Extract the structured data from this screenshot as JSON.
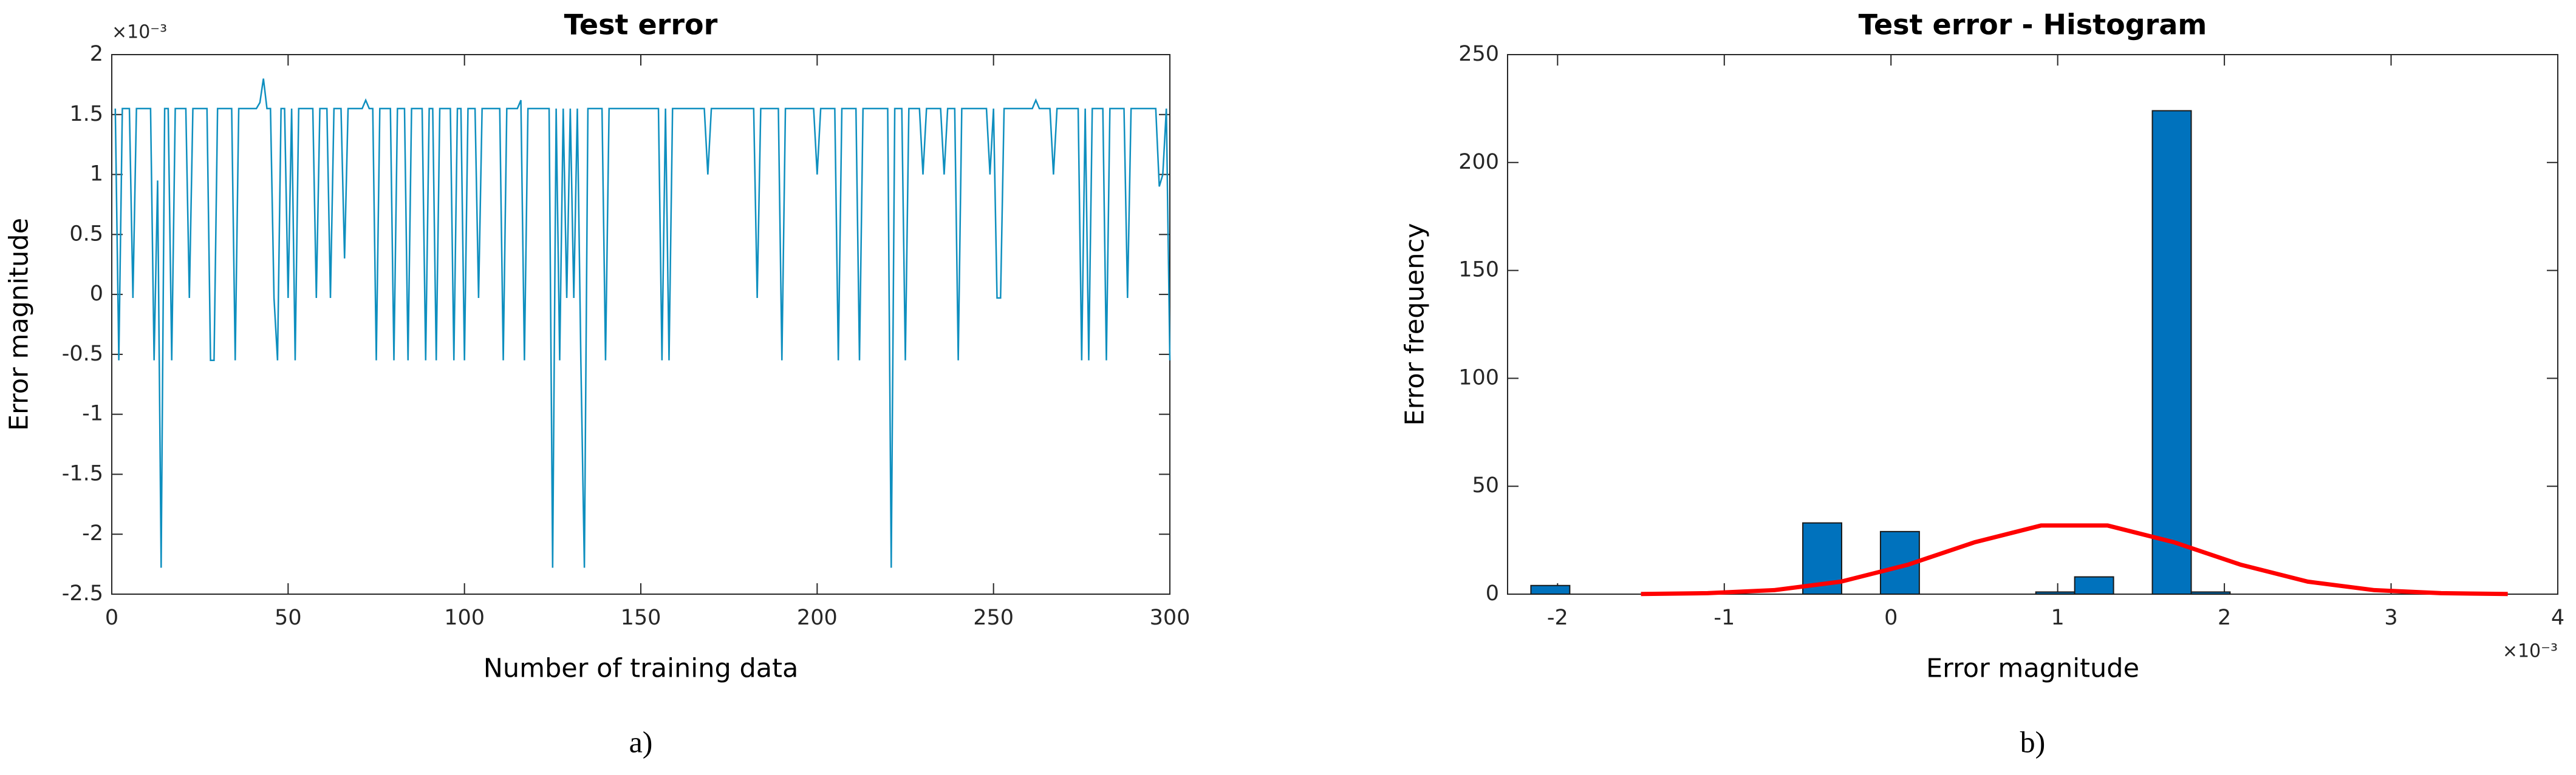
{
  "chart_data": [
    {
      "type": "line",
      "title": "Test error",
      "xlabel": "Number of training data",
      "ylabel": "Error magnitude",
      "exponent_label": "×10⁻³",
      "caption": "a)",
      "xlim": [
        0,
        300
      ],
      "xticks": [
        0,
        50,
        100,
        150,
        200,
        250,
        300
      ],
      "ylim": [
        -2.5,
        2
      ],
      "yticks": [
        -2.5,
        -2,
        -1.5,
        -1,
        -0.5,
        0,
        0.5,
        1,
        1.5,
        2
      ],
      "color": "#0e8fbf",
      "x": [
        1,
        2,
        3,
        4,
        5,
        6,
        7,
        8,
        9,
        10,
        11,
        12,
        13,
        14,
        15,
        16,
        17,
        18,
        19,
        20,
        21,
        22,
        23,
        24,
        25,
        26,
        27,
        28,
        29,
        30,
        31,
        32,
        33,
        34,
        35,
        36,
        37,
        38,
        39,
        40,
        41,
        42,
        43,
        44,
        45,
        46,
        47,
        48,
        49,
        50,
        51,
        52,
        53,
        54,
        55,
        56,
        57,
        58,
        59,
        60,
        61,
        62,
        63,
        64,
        65,
        66,
        67,
        68,
        69,
        70,
        71,
        72,
        73,
        74,
        75,
        76,
        77,
        78,
        79,
        80,
        81,
        82,
        83,
        84,
        85,
        86,
        87,
        88,
        89,
        90,
        91,
        92,
        93,
        94,
        95,
        96,
        97,
        98,
        99,
        100,
        101,
        102,
        103,
        104,
        105,
        106,
        107,
        108,
        109,
        110,
        111,
        112,
        113,
        114,
        115,
        116,
        117,
        118,
        119,
        120,
        121,
        122,
        123,
        124,
        125,
        126,
        127,
        128,
        129,
        130,
        131,
        132,
        133,
        134,
        135,
        136,
        137,
        138,
        139,
        140,
        141,
        142,
        143,
        144,
        145,
        146,
        147,
        148,
        149,
        150,
        151,
        152,
        153,
        154,
        155,
        156,
        157,
        158,
        159,
        160,
        161,
        162,
        163,
        164,
        165,
        166,
        167,
        168,
        169,
        170,
        171,
        172,
        173,
        174,
        175,
        176,
        177,
        178,
        179,
        180,
        181,
        182,
        183,
        184,
        185,
        186,
        187,
        188,
        189,
        190,
        191,
        192,
        193,
        194,
        195,
        196,
        197,
        198,
        199,
        200,
        201,
        202,
        203,
        204,
        205,
        206,
        207,
        208,
        209,
        210,
        211,
        212,
        213,
        214,
        215,
        216,
        217,
        218,
        219,
        220,
        221,
        222,
        223,
        224,
        225,
        226,
        227,
        228,
        229,
        230,
        231,
        232,
        233,
        234,
        235,
        236,
        237,
        238,
        239,
        240,
        241,
        242,
        243,
        244,
        245,
        246,
        247,
        248,
        249,
        250,
        251,
        252,
        253,
        254,
        255,
        256,
        257,
        258,
        259,
        260,
        261,
        262,
        263,
        264,
        265,
        266,
        267,
        268,
        269,
        270,
        271,
        272,
        273,
        274,
        275,
        276,
        277,
        278,
        279,
        280,
        281,
        282,
        283,
        284,
        285,
        286,
        287,
        288,
        289,
        290,
        291,
        292,
        293,
        294,
        295,
        296,
        297,
        298,
        299,
        300
      ],
      "values": [
        1.55,
        -0.55,
        1.55,
        1.55,
        1.55,
        -0.03,
        1.55,
        1.55,
        1.55,
        1.55,
        1.55,
        -0.55,
        0.95,
        -2.28,
        1.55,
        1.55,
        -0.55,
        1.55,
        1.55,
        1.55,
        1.55,
        -0.03,
        1.55,
        1.55,
        1.55,
        1.55,
        1.55,
        -0.55,
        -0.55,
        1.55,
        1.55,
        1.55,
        1.55,
        1.55,
        -0.55,
        1.55,
        1.55,
        1.55,
        1.55,
        1.55,
        1.55,
        1.6,
        1.8,
        1.55,
        1.55,
        -0.03,
        -0.55,
        1.55,
        1.55,
        -0.03,
        1.55,
        -0.55,
        1.55,
        1.55,
        1.55,
        1.55,
        1.55,
        -0.03,
        1.55,
        1.55,
        1.55,
        -0.03,
        1.55,
        1.55,
        1.55,
        0.3,
        1.55,
        1.55,
        1.55,
        1.55,
        1.55,
        1.62,
        1.55,
        1.55,
        -0.55,
        1.55,
        1.55,
        1.55,
        1.55,
        -0.55,
        1.55,
        1.55,
        1.55,
        -0.55,
        1.55,
        1.55,
        1.55,
        1.55,
        -0.55,
        1.55,
        1.55,
        -0.55,
        1.55,
        1.55,
        1.55,
        1.55,
        -0.55,
        1.55,
        1.55,
        -0.55,
        1.55,
        1.55,
        1.55,
        -0.03,
        1.55,
        1.55,
        1.55,
        1.55,
        1.55,
        1.55,
        -0.55,
        1.55,
        1.55,
        1.55,
        1.55,
        1.62,
        -0.55,
        1.55,
        1.55,
        1.55,
        1.55,
        1.55,
        1.55,
        1.55,
        -2.28,
        1.55,
        -0.55,
        1.55,
        -0.03,
        1.55,
        -0.03,
        1.55,
        -0.55,
        -2.28,
        1.55,
        1.55,
        1.55,
        1.55,
        1.55,
        -0.55,
        1.55,
        1.55,
        1.55,
        1.55,
        1.55,
        1.55,
        1.55,
        1.55,
        1.55,
        1.55,
        1.55,
        1.55,
        1.55,
        1.55,
        1.55,
        -0.55,
        1.55,
        -0.55,
        1.55,
        1.55,
        1.55,
        1.55,
        1.55,
        1.55,
        1.55,
        1.55,
        1.55,
        1.55,
        1.0,
        1.55,
        1.55,
        1.55,
        1.55,
        1.55,
        1.55,
        1.55,
        1.55,
        1.55,
        1.55,
        1.55,
        1.55,
        1.55,
        -0.03,
        1.55,
        1.55,
        1.55,
        1.55,
        1.55,
        1.55,
        -0.55,
        1.55,
        1.55,
        1.55,
        1.55,
        1.55,
        1.55,
        1.55,
        1.55,
        1.55,
        1.0,
        1.55,
        1.55,
        1.55,
        1.55,
        1.55,
        -0.55,
        1.55,
        1.55,
        1.55,
        1.55,
        1.55,
        -0.55,
        1.55,
        1.55,
        1.55,
        1.55,
        1.55,
        1.55,
        1.55,
        1.55,
        -2.28,
        1.55,
        1.55,
        1.55,
        -0.55,
        1.55,
        1.55,
        1.55,
        1.55,
        1.0,
        1.55,
        1.55,
        1.55,
        1.55,
        1.55,
        1.0,
        1.55,
        1.55,
        1.55,
        -0.55,
        1.55,
        1.55,
        1.55,
        1.55,
        1.55,
        1.55,
        1.55,
        1.55,
        1.0,
        1.55,
        -0.03,
        -0.03,
        1.55,
        1.55,
        1.55,
        1.55,
        1.55,
        1.55,
        1.55,
        1.55,
        1.55,
        1.62,
        1.55,
        1.55,
        1.55,
        1.55,
        1.0,
        1.55,
        1.55,
        1.55,
        1.55,
        1.55,
        1.55,
        1.55,
        -0.55,
        1.55,
        -0.55,
        1.55,
        1.55,
        1.55,
        1.55,
        -0.55,
        1.55,
        1.55,
        1.55,
        1.55,
        1.55,
        -0.03,
        1.55,
        1.55,
        1.55,
        1.55,
        1.55,
        1.55,
        1.55,
        1.55,
        0.9,
        1.0,
        1.55,
        -0.55
      ]
    },
    {
      "type": "histogram",
      "title": "Test error - Histogram",
      "xlabel": "Error magnitude",
      "ylabel": "Error frequency",
      "exponent_label": "×10⁻³",
      "caption": "b)",
      "xlim": [
        -2.3,
        4
      ],
      "xticks": [
        -2,
        -1,
        0,
        1,
        2,
        3,
        4
      ],
      "ylim": [
        0,
        250
      ],
      "yticks": [
        0,
        50,
        100,
        150,
        200,
        250
      ],
      "color": "#0072bd",
      "bins": [
        -2.16,
        -1.927,
        -1.694,
        -1.461,
        -1.228,
        -0.995,
        -0.762,
        -0.529,
        -0.296,
        -0.063,
        0.17,
        0.403,
        0.636,
        0.869,
        1.102,
        1.335,
        1.568,
        1.801,
        2.034
      ],
      "values": [
        4,
        0,
        0,
        0,
        0,
        0,
        0,
        33,
        0,
        29,
        0,
        0,
        0,
        1,
        8,
        0,
        224,
        1
      ],
      "fit": {
        "color": "#ff0000",
        "x": [
          -1.5,
          -1.1,
          -0.7,
          -0.3,
          0.1,
          0.5,
          0.9,
          1.3,
          1.7,
          2.1,
          2.5,
          2.9,
          3.3,
          3.7
        ],
        "values": [
          0.08,
          0.45,
          1.85,
          5.8,
          13.6,
          24.0,
          31.8,
          31.8,
          24.0,
          13.6,
          5.8,
          1.85,
          0.45,
          0.08
        ]
      }
    }
  ]
}
